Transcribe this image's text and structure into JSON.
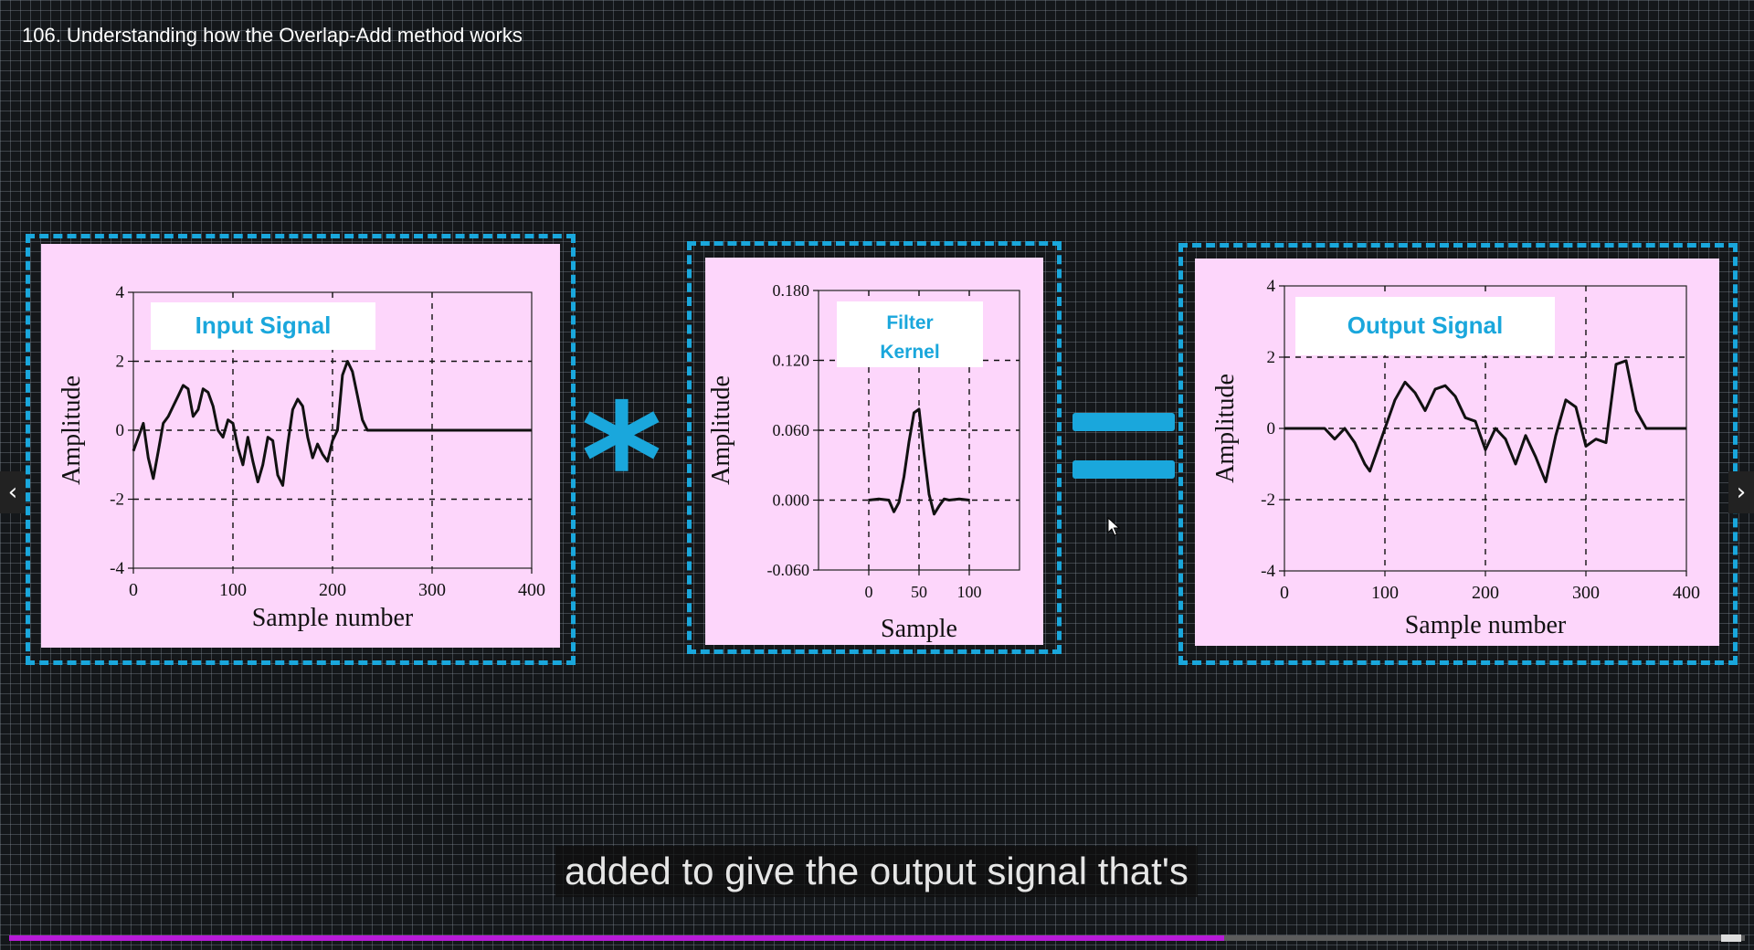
{
  "video": {
    "title": "106. Understanding how the Overlap-Add method works",
    "subtitle": "added to give the output signal that's",
    "progress_fraction": 0.7
  },
  "operators": {
    "convolve": "*"
  },
  "colors": {
    "accent": "#1aa7dc",
    "panel_bg": "#fdd6fb",
    "progress": "#b71ad8"
  },
  "nav": {
    "prev_icon": "chevron-left-icon",
    "next_icon": "chevron-right-icon"
  },
  "chart_data": [
    {
      "type": "line",
      "title": "Input Signal",
      "xlabel": "Sample number",
      "ylabel": "Amplitude",
      "xlim": [
        0,
        400
      ],
      "ylim": [
        -4,
        4
      ],
      "xticks": [
        "0",
        "100",
        "200",
        "300",
        "400"
      ],
      "yticks": [
        "4",
        "2",
        "0",
        "-2",
        "-4"
      ],
      "grid": "dashed",
      "x": [
        0,
        5,
        10,
        15,
        20,
        25,
        30,
        35,
        40,
        45,
        50,
        55,
        60,
        65,
        70,
        75,
        80,
        85,
        90,
        95,
        100,
        105,
        110,
        115,
        120,
        125,
        130,
        135,
        140,
        145,
        150,
        155,
        160,
        165,
        170,
        175,
        180,
        185,
        190,
        195,
        200,
        205,
        210,
        215,
        220,
        225,
        230,
        235,
        240,
        245,
        250,
        255,
        260,
        265,
        270,
        275,
        280,
        285,
        290,
        295,
        300,
        305,
        350,
        400
      ],
      "y": [
        -0.6,
        -0.2,
        0.2,
        -0.8,
        -1.4,
        -0.6,
        0.2,
        0.4,
        0.7,
        1.0,
        1.3,
        1.2,
        0.4,
        0.6,
        1.2,
        1.1,
        0.7,
        0.0,
        -0.2,
        0.3,
        0.2,
        -0.5,
        -1.0,
        -0.2,
        -0.9,
        -1.5,
        -1.0,
        -0.2,
        -0.3,
        -1.3,
        -1.6,
        -0.4,
        0.6,
        0.9,
        0.7,
        -0.2,
        -0.8,
        -0.4,
        -0.7,
        -0.9,
        -0.3,
        0.0,
        1.6,
        2.0,
        1.7,
        1.0,
        0.3,
        0.0,
        0.0,
        0.0,
        0.0,
        0.0,
        0.0,
        0.0,
        0.0,
        0.0,
        0.0,
        0.0,
        0.0,
        0.0,
        0.0,
        0.0,
        0.0,
        0.0
      ]
    },
    {
      "type": "line",
      "title": "Filter Kernel",
      "xlabel": "Sample",
      "ylabel": "Amplitude",
      "xlim": [
        -50,
        150
      ],
      "ylim": [
        -0.06,
        0.18
      ],
      "xticks": [
        "0",
        "50",
        "100"
      ],
      "yticks": [
        "0.180",
        "0.120",
        "0.060",
        "0.000",
        "-0.060"
      ],
      "grid": "dashed",
      "x": [
        0,
        10,
        20,
        25,
        30,
        35,
        40,
        45,
        50,
        55,
        60,
        65,
        70,
        75,
        80,
        90,
        100
      ],
      "y": [
        0.0,
        0.001,
        0.0,
        -0.01,
        -0.002,
        0.02,
        0.05,
        0.075,
        0.078,
        0.04,
        0.005,
        -0.012,
        -0.005,
        0.001,
        0.0,
        0.001,
        0.0
      ]
    },
    {
      "type": "line",
      "title": "Output Signal",
      "xlabel": "Sample number",
      "ylabel": "Amplitude",
      "xlim": [
        0,
        400
      ],
      "ylim": [
        -4,
        4
      ],
      "xticks": [
        "0",
        "100",
        "200",
        "300",
        "400"
      ],
      "yticks": [
        "4",
        "2",
        "0",
        "-2",
        "-4"
      ],
      "grid": "dashed",
      "x": [
        0,
        20,
        40,
        50,
        60,
        70,
        80,
        85,
        90,
        100,
        110,
        120,
        130,
        140,
        150,
        160,
        170,
        180,
        190,
        200,
        210,
        220,
        230,
        240,
        250,
        260,
        270,
        280,
        290,
        300,
        310,
        320,
        330,
        340,
        350,
        360,
        380,
        400
      ],
      "y": [
        0.0,
        0.0,
        0.0,
        -0.3,
        0.0,
        -0.4,
        -1.0,
        -1.2,
        -0.8,
        0.0,
        0.8,
        1.3,
        1.0,
        0.5,
        1.1,
        1.2,
        0.9,
        0.3,
        0.2,
        -0.6,
        0.0,
        -0.3,
        -1.0,
        -0.2,
        -0.8,
        -1.5,
        -0.2,
        0.8,
        0.6,
        -0.5,
        -0.3,
        -0.4,
        1.8,
        1.9,
        0.5,
        0.0,
        0.0,
        0.0
      ]
    }
  ]
}
